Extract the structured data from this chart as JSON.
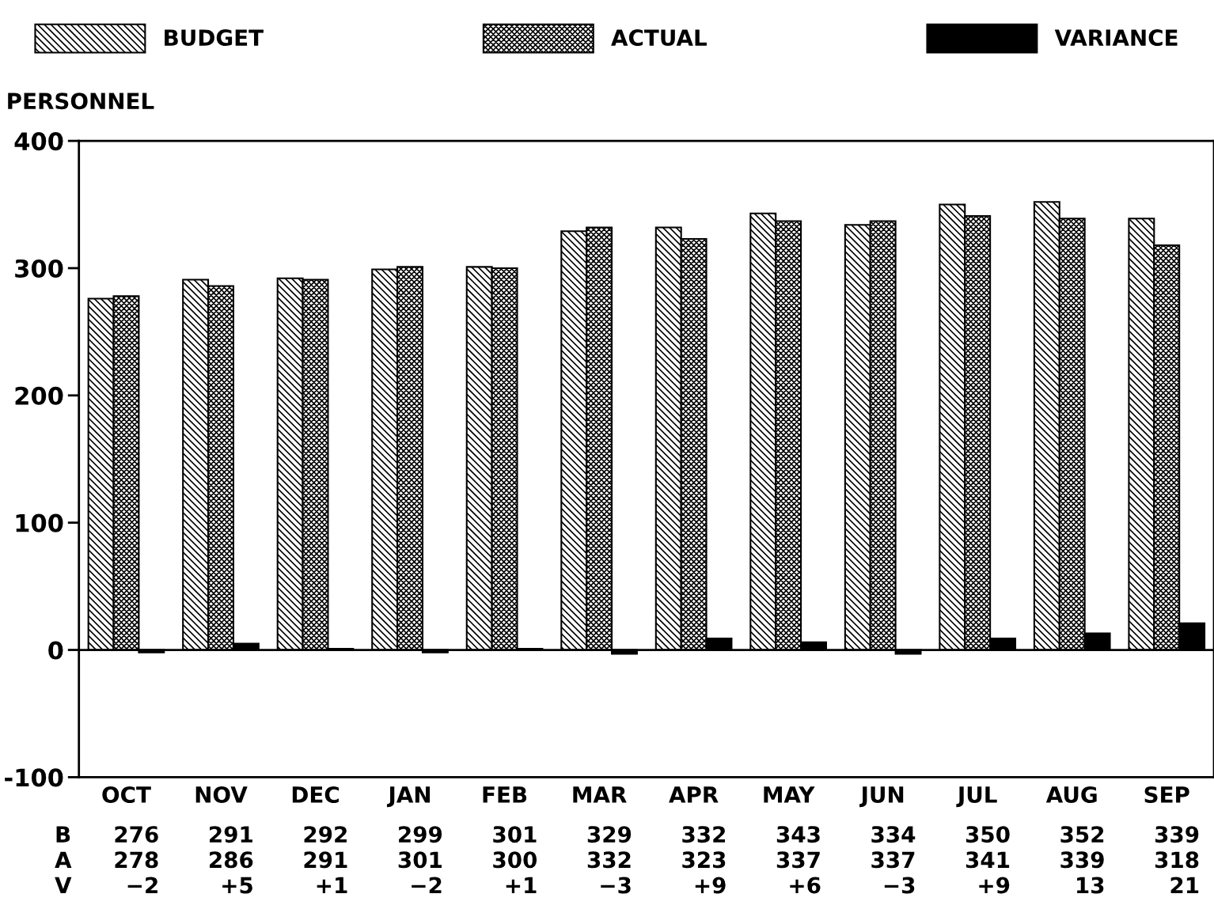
{
  "chart_data": {
    "type": "bar",
    "ylabel": "PERSONNEL",
    "categories": [
      "OCT",
      "NOV",
      "DEC",
      "JAN",
      "FEB",
      "MAR",
      "APR",
      "MAY",
      "JUN",
      "JUL",
      "AUG",
      "SEP"
    ],
    "series": [
      {
        "name": "BUDGET",
        "color": "#000000",
        "values": [
          276,
          291,
          292,
          299,
          301,
          329,
          332,
          343,
          334,
          350,
          352,
          339
        ],
        "value_labels": [
          "276",
          "291",
          "292",
          "299",
          "301",
          "329",
          "332",
          "343",
          "334",
          "350",
          "352",
          "339"
        ]
      },
      {
        "name": "ACTUAL",
        "color": "#000000",
        "values": [
          278,
          286,
          291,
          301,
          300,
          332,
          323,
          337,
          337,
          341,
          339,
          318
        ],
        "value_labels": [
          "278",
          "286",
          "291",
          "301",
          "300",
          "332",
          "323",
          "337",
          "337",
          "341",
          "339",
          "318"
        ]
      },
      {
        "name": "VARIANCE",
        "color": "#000000",
        "values": [
          -2,
          5,
          1,
          -2,
          1,
          -3,
          9,
          6,
          -3,
          9,
          13,
          21
        ],
        "value_labels": [
          "−2",
          "+5",
          "+1",
          "−2",
          "+1",
          "−3",
          "+9",
          "+6",
          "−3",
          "+9",
          "13",
          "21"
        ]
      }
    ],
    "annotations": [
      "B",
      "A",
      "V"
    ],
    "ylim": [
      -100,
      400
    ],
    "yticks": [
      -100,
      0,
      100,
      200,
      300,
      400
    ],
    "ref_lines": [
      {
        "axis": "y",
        "value": 0,
        "color": "#000000"
      }
    ],
    "legend": "top",
    "grid": false
  }
}
